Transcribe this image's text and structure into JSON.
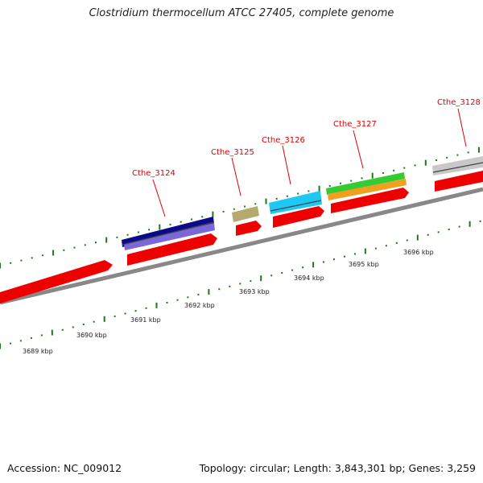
{
  "title": "Clostridium thermocellum ATCC 27405, complete genome",
  "footer": {
    "accession": "Accession: NC_009012",
    "summary": "Topology: circular; Length: 3,843,301 bp; Genes: 3,259"
  },
  "colors": {
    "cds_forward": "#ee0000",
    "backbone": "#888888",
    "tick": "#1a7a1a",
    "gene_label": "#e00000",
    "cog_navy": "#0a0a8a",
    "cog_lavender": "#7b68d8",
    "cog_khaki": "#b5aa6e",
    "cog_cyan": "#1ec8f5",
    "cog_green": "#33cc33",
    "cog_orange": "#f0a020",
    "cog_gray": "#c8c8c8"
  },
  "gene_labels": [
    "Cthe_3124",
    "Cthe_3125",
    "Cthe_3126",
    "Cthe_3127",
    "Cthe_3128"
  ],
  "position_labels": [
    "3689 kbp",
    "3690 kbp",
    "3691 kbp",
    "3692 kbp",
    "3693 kbp",
    "3694 kbp",
    "3695 kbp",
    "3696 kbp"
  ]
}
